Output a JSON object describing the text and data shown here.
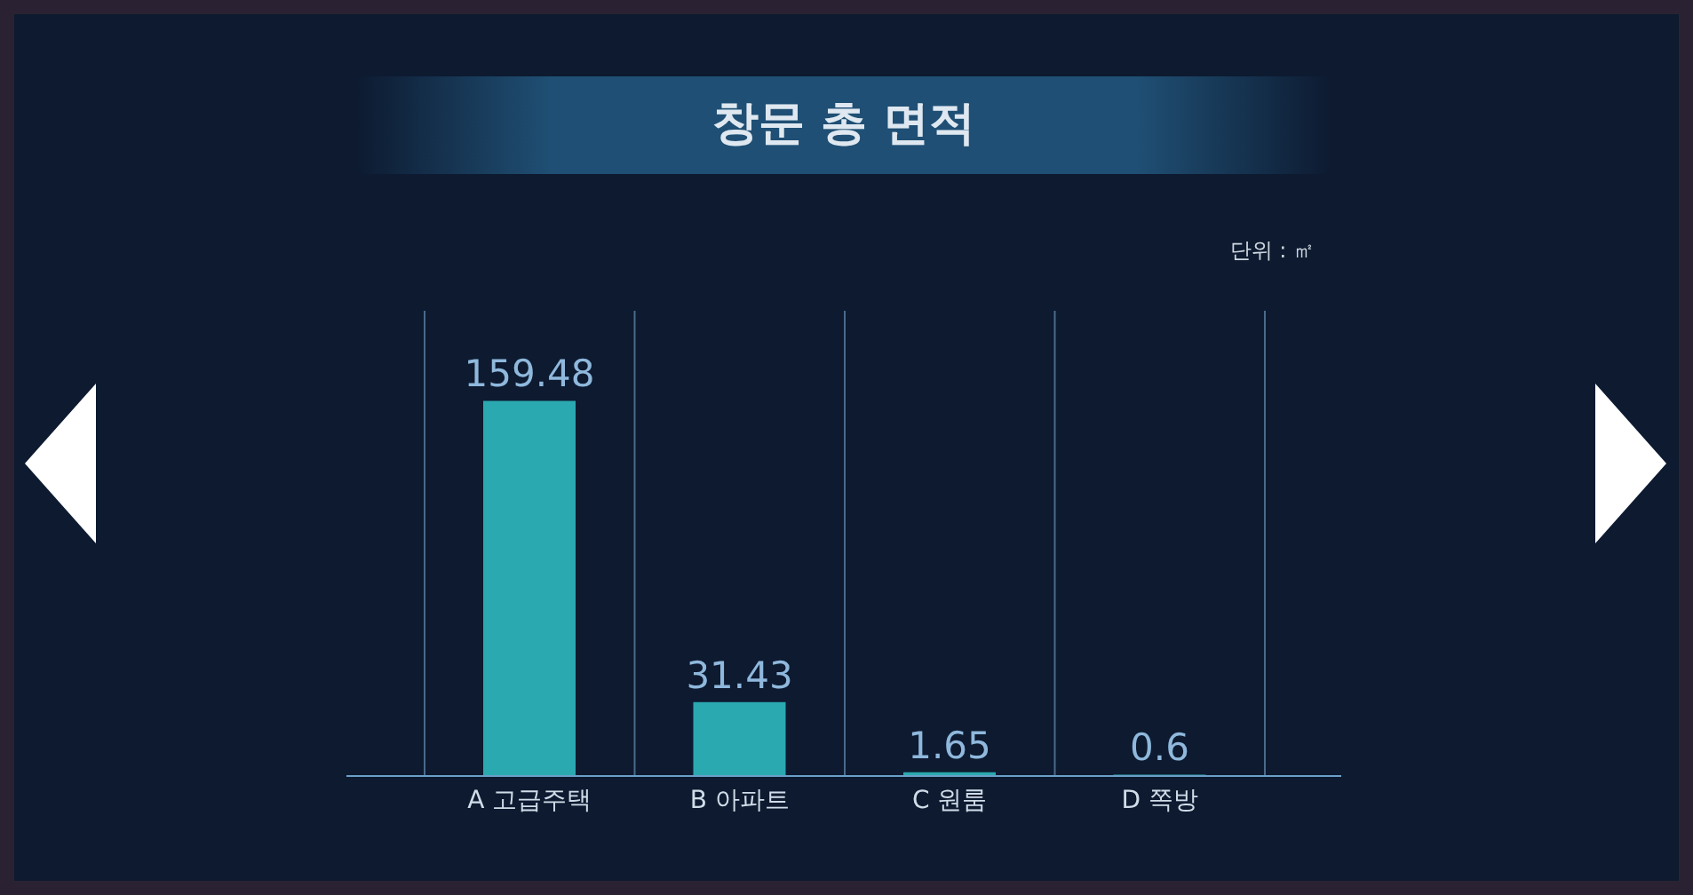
{
  "chart_data": {
    "type": "bar",
    "title": "창문 총 면적",
    "annotations": [
      "단위 : ㎡"
    ],
    "categories": [
      "A 고급주택",
      "B 아파트",
      "C 원룸",
      "D 쪽방"
    ],
    "values": [
      159.48,
      31.43,
      1.65,
      0.6
    ],
    "color": "#2ba9b1",
    "data_labels": true,
    "grid": "x"
  }
}
